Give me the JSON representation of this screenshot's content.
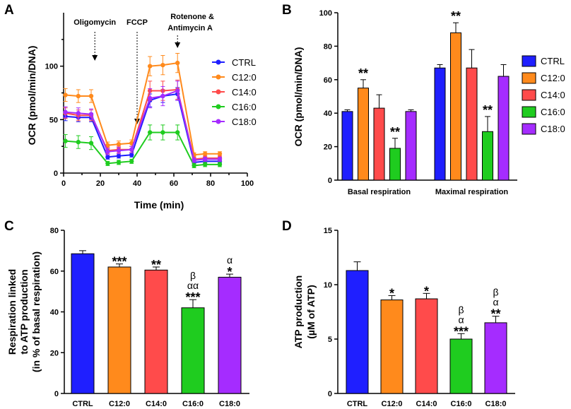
{
  "colors": {
    "CTRL": "#1f1fff",
    "C12:0": "#ff8a1c",
    "C14:0": "#ff4b4b",
    "C16:0": "#1fcc1f",
    "C18:0": "#a52cff"
  },
  "chart_data": [
    {
      "id": "A",
      "panel_label": "A",
      "type": "line",
      "xlabel": "Time (min)",
      "ylabel": "OCR (pmol/min/DNA)",
      "xlim": [
        0,
        100
      ],
      "ylim": [
        0,
        150
      ],
      "xticks": [
        "0",
        "20",
        "40",
        "60",
        "80",
        "100"
      ],
      "yticks": [
        "0",
        "50",
        "100"
      ],
      "x": [
        1,
        8,
        15,
        24,
        30,
        37,
        47,
        54,
        62,
        71,
        77,
        85
      ],
      "series": [
        {
          "name": "CTRL",
          "values": [
            53,
            52,
            52,
            15,
            16,
            17,
            68,
            72,
            74,
            10,
            11,
            11
          ],
          "err": [
            4,
            4,
            4,
            2,
            2,
            2,
            6,
            6,
            6,
            2,
            2,
            2
          ]
        },
        {
          "name": "C12:0",
          "values": [
            73,
            72,
            72,
            26,
            27,
            28,
            100,
            101,
            103,
            17,
            18,
            18
          ],
          "err": [
            6,
            6,
            6,
            3,
            3,
            3,
            9,
            9,
            9,
            2,
            2,
            2
          ]
        },
        {
          "name": "C14:0",
          "values": [
            56,
            54,
            54,
            21,
            22,
            22,
            77,
            77,
            78,
            13,
            14,
            14
          ],
          "err": [
            5,
            5,
            5,
            3,
            3,
            3,
            9,
            9,
            9,
            2,
            2,
            2
          ]
        },
        {
          "name": "C16:0",
          "values": [
            30,
            29,
            28,
            9,
            10,
            11,
            38,
            38,
            38,
            7,
            8,
            8
          ],
          "err": [
            6,
            6,
            6,
            2,
            2,
            2,
            7,
            7,
            7,
            2,
            2,
            2
          ]
        },
        {
          "name": "C18:0",
          "values": [
            57,
            56,
            55,
            20,
            21,
            22,
            70,
            72,
            77,
            12,
            13,
            13
          ],
          "err": [
            5,
            5,
            5,
            3,
            3,
            3,
            9,
            9,
            9,
            2,
            2,
            2
          ]
        }
      ],
      "annotations": [
        {
          "text": "Oligomycin",
          "x": 17
        },
        {
          "text": "FCCP",
          "x": 40
        },
        {
          "text": "Rotenone &",
          "x": 62
        },
        {
          "text": "Antimycin A",
          "x": 62
        }
      ],
      "legend": [
        "CTRL",
        "C12:0",
        "C14:0",
        "C16:0",
        "C18:0"
      ]
    },
    {
      "id": "B",
      "panel_label": "B",
      "type": "bar",
      "ylabel": "OCR (pmol/min/DNA)",
      "ylim": [
        0,
        100
      ],
      "yticks": [
        "0",
        "20",
        "40",
        "60",
        "80",
        "100"
      ],
      "categories": [
        "Basal respiration",
        "Maximal respiration"
      ],
      "series": [
        {
          "name": "CTRL",
          "values": [
            41,
            67
          ],
          "err": [
            1,
            2
          ],
          "sig": [
            "",
            ""
          ]
        },
        {
          "name": "C12:0",
          "values": [
            55,
            88
          ],
          "err": [
            5,
            6
          ],
          "sig": [
            "**",
            "**"
          ]
        },
        {
          "name": "C14:0",
          "values": [
            43,
            67
          ],
          "err": [
            8,
            11
          ],
          "sig": [
            "",
            ""
          ]
        },
        {
          "name": "C16:0",
          "values": [
            19,
            29
          ],
          "err": [
            6,
            9
          ],
          "sig": [
            "**",
            "**"
          ]
        },
        {
          "name": "C18:0",
          "values": [
            41,
            62
          ],
          "err": [
            1,
            7
          ],
          "sig": [
            "",
            ""
          ]
        }
      ],
      "legend": [
        "CTRL",
        "C12:0",
        "C14:0",
        "C16:0",
        "C18:0"
      ]
    },
    {
      "id": "C",
      "panel_label": "C",
      "type": "bar",
      "ylabel_lines": [
        "Respiration linked",
        "to ATP production",
        "(in % of basal respiration)"
      ],
      "ylim": [
        0,
        80
      ],
      "yticks": [
        "0",
        "20",
        "40",
        "60",
        "80"
      ],
      "categories": [
        "CTRL",
        "C12:0",
        "C14:0",
        "C16:0",
        "C18:0"
      ],
      "values": [
        68.5,
        62,
        60.5,
        42,
        57
      ],
      "err": [
        1.5,
        1.5,
        1.5,
        4,
        1.5
      ],
      "sig": [
        [],
        [
          "***"
        ],
        [
          "**"
        ],
        [
          "β",
          "αα",
          "***"
        ],
        [
          "α",
          "*"
        ]
      ]
    },
    {
      "id": "D",
      "panel_label": "D",
      "type": "bar",
      "ylabel_lines": [
        "ATP production",
        "(µM of ATP)"
      ],
      "ylim": [
        0,
        15
      ],
      "yticks": [
        "0",
        "5",
        "10",
        "15"
      ],
      "categories": [
        "CTRL",
        "C12:0",
        "C14:0",
        "C16:0",
        "C18:0"
      ],
      "values": [
        11.3,
        8.6,
        8.7,
        5.0,
        6.5
      ],
      "err": [
        0.8,
        0.4,
        0.5,
        0.5,
        0.6
      ],
      "sig": [
        [],
        [
          "*"
        ],
        [
          "*"
        ],
        [
          "β",
          "α",
          "***"
        ],
        [
          "β",
          "α",
          "**"
        ]
      ]
    }
  ]
}
